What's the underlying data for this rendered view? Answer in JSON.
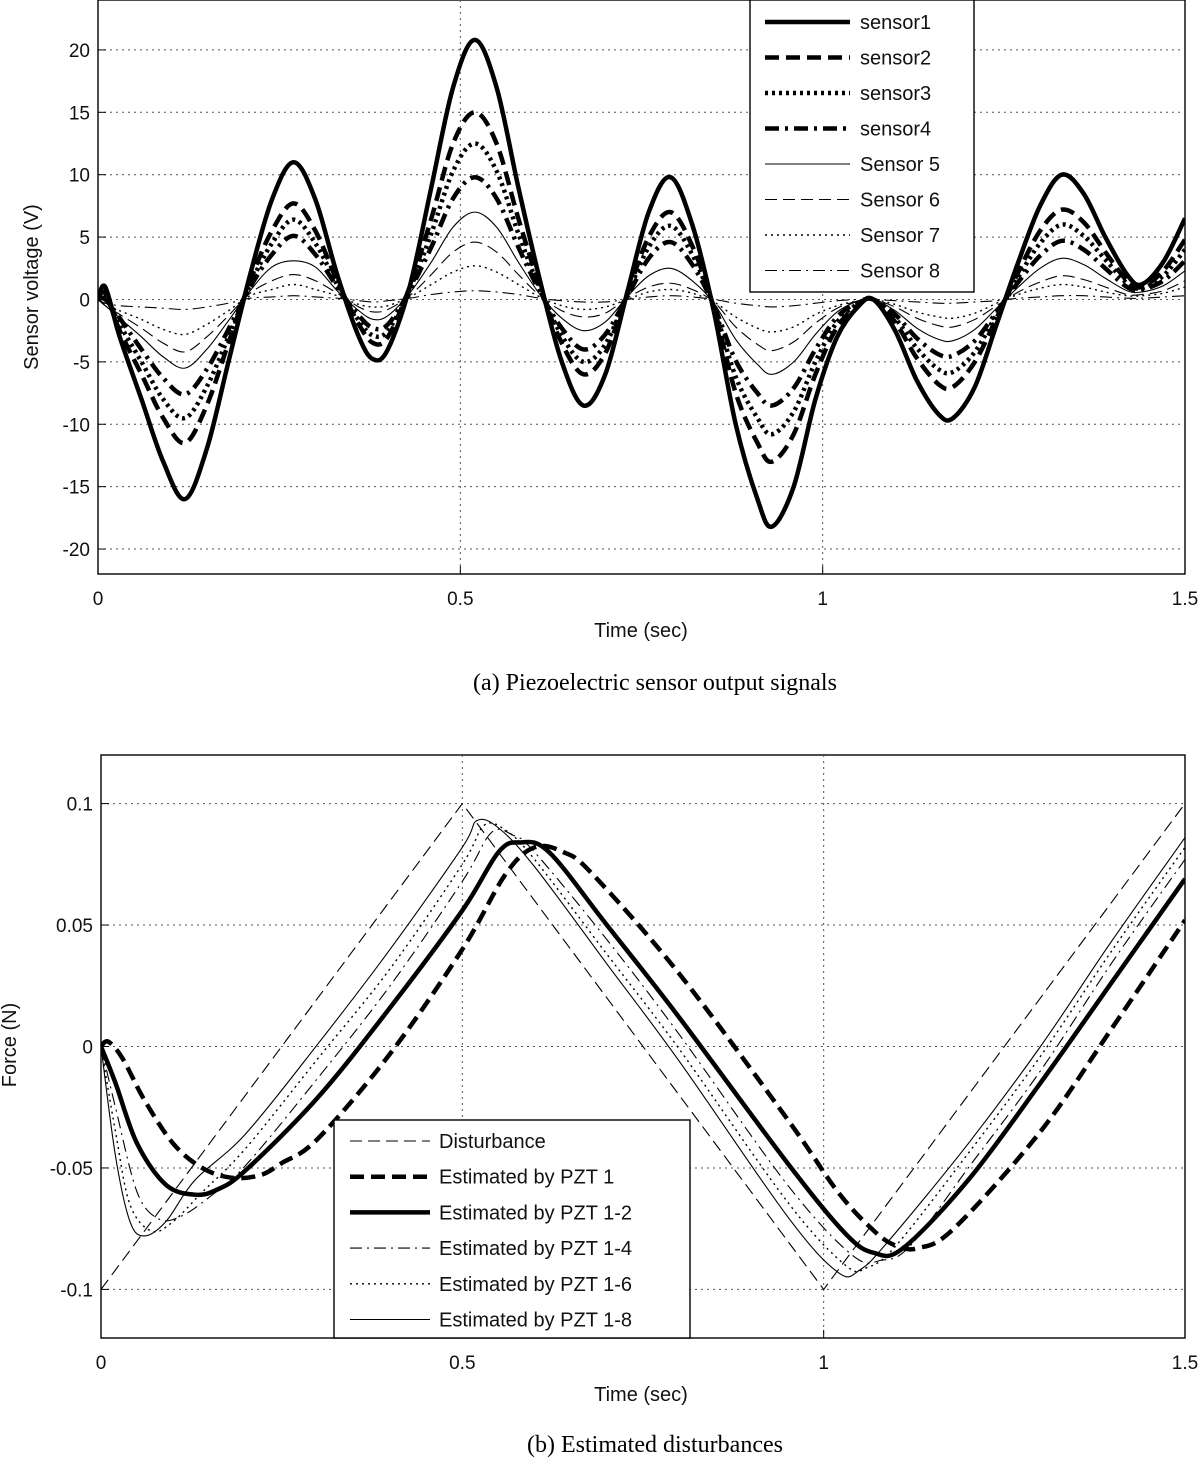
{
  "chart_data": [
    {
      "type": "line",
      "caption": "(a) Piezoelectric sensor output signals",
      "xlabel": "Time (sec)",
      "ylabel": "Sensor voltage (V)",
      "xlim": [
        0,
        1.5
      ],
      "ylim": [
        -22,
        24
      ],
      "xticks": [
        "0",
        "0.5",
        "1",
        "1.5"
      ],
      "xtick_values": [
        0,
        0.5,
        1,
        1.5
      ],
      "yticks": [
        "20",
        "15",
        "10",
        "5",
        "0",
        "-5",
        "-10",
        "-15",
        "-20"
      ],
      "ytick_values": [
        20,
        15,
        10,
        5,
        0,
        -5,
        -10,
        -15,
        -20
      ],
      "grid": true,
      "legend_position": "top-right",
      "x": [
        0,
        0.01,
        0.03,
        0.06,
        0.09,
        0.12,
        0.15,
        0.18,
        0.21,
        0.24,
        0.27,
        0.3,
        0.33,
        0.36,
        0.38,
        0.4,
        0.43,
        0.46,
        0.49,
        0.52,
        0.55,
        0.58,
        0.61,
        0.64,
        0.67,
        0.7,
        0.73,
        0.76,
        0.79,
        0.82,
        0.85,
        0.88,
        0.91,
        0.93,
        0.96,
        0.99,
        1.02,
        1.05,
        1.07,
        1.1,
        1.13,
        1.16,
        1.18,
        1.21,
        1.24,
        1.27,
        1.3,
        1.33,
        1.36,
        1.39,
        1.42,
        1.44,
        1.47,
        1.5
      ],
      "series": [
        {
          "name": "sensor1",
          "style": "solid-bold",
          "values": [
            0,
            1,
            -3,
            -8,
            -13,
            -16,
            -12,
            -5,
            2,
            8,
            11,
            8,
            2,
            -3,
            -4.8,
            -4,
            1,
            9,
            17,
            20.8,
            17,
            9,
            1.5,
            -5,
            -8.5,
            -6,
            0.5,
            7,
            9.8,
            6,
            -1,
            -10,
            -16,
            -18.2,
            -15,
            -8,
            -3,
            -0.5,
            0,
            -2.5,
            -6.5,
            -9.2,
            -9.5,
            -7,
            -2,
            3,
            7.5,
            10,
            8.5,
            5,
            2,
            1.2,
            3,
            6.5
          ]
        },
        {
          "name": "sensor2",
          "style": "dashed-bold",
          "values": [
            0,
            0.5,
            -2.5,
            -6,
            -9.5,
            -11.5,
            -8.5,
            -3.5,
            1.5,
            5.5,
            7.7,
            5.5,
            1.5,
            -2,
            -3.5,
            -3,
            1,
            6.5,
            12.5,
            15,
            12.5,
            6.5,
            1,
            -3.5,
            -6,
            -4.3,
            0.4,
            5,
            7,
            4.3,
            -0.7,
            -7.5,
            -11.5,
            -13,
            -10.8,
            -6,
            -2.2,
            -0.4,
            0,
            -1.8,
            -4.7,
            -6.8,
            -7,
            -5,
            -1.5,
            2.2,
            5.5,
            7.2,
            6.2,
            3.8,
            1.5,
            1,
            2.3,
            4.8
          ]
        },
        {
          "name": "sensor3",
          "style": "dotted-bold",
          "values": [
            0,
            0.2,
            -2,
            -5,
            -8,
            -9.5,
            -7,
            -3,
            1.2,
            4.5,
            6.4,
            4.5,
            1.2,
            -1.7,
            -2.9,
            -2.5,
            0.8,
            5.3,
            10.3,
            12.5,
            10.3,
            5.3,
            0.8,
            -2.9,
            -5,
            -3.6,
            0.3,
            4.2,
            5.9,
            3.6,
            -0.6,
            -6.2,
            -9.5,
            -10.8,
            -9,
            -5,
            -1.8,
            -0.3,
            0,
            -1.5,
            -3.9,
            -5.6,
            -5.8,
            -4.2,
            -1.2,
            1.8,
            4.5,
            6,
            5.1,
            3.2,
            1.3,
            0.9,
            1.9,
            4
          ]
        },
        {
          "name": "sensor4",
          "style": "dashdot-bold",
          "values": [
            0,
            0,
            -1.5,
            -4,
            -6.3,
            -7.6,
            -5.6,
            -2.4,
            1,
            3.6,
            5.1,
            3.6,
            1,
            -1.3,
            -2.3,
            -2,
            0.7,
            4.2,
            8.1,
            9.8,
            8.1,
            4.2,
            0.6,
            -2.3,
            -4,
            -2.8,
            0.2,
            3.3,
            4.6,
            2.8,
            -0.5,
            -4.9,
            -7.5,
            -8.5,
            -7.1,
            -4,
            -1.4,
            -0.2,
            0,
            -1.2,
            -3.1,
            -4.4,
            -4.5,
            -3.3,
            -1,
            1.4,
            3.5,
            4.7,
            4,
            2.5,
            1,
            0.8,
            1.5,
            3.1
          ]
        },
        {
          "name": "Sensor 5",
          "style": "solid-thin",
          "values": [
            0,
            -0.5,
            -1.5,
            -3,
            -4.6,
            -5.5,
            -4,
            -1.7,
            0.7,
            2.6,
            3.1,
            2.6,
            0.7,
            -0.9,
            -1.6,
            -1.3,
            0.5,
            3,
            5.8,
            7,
            5.8,
            3,
            0.4,
            -1.5,
            -2.5,
            -1.8,
            0.2,
            1.9,
            2.5,
            1.5,
            -0.3,
            -3.2,
            -5.2,
            -6,
            -5,
            -2.8,
            -1,
            -0.1,
            0,
            -0.9,
            -2.3,
            -3.2,
            -3.3,
            -2.4,
            -0.7,
            1,
            2.5,
            3.3,
            2.8,
            1.7,
            0.7,
            0.6,
            1.1,
            2.3
          ]
        },
        {
          "name": "Sensor 6",
          "style": "dashed-thin",
          "values": [
            0,
            -0.5,
            -1.2,
            -2.3,
            -3.5,
            -4.2,
            -3,
            -1.3,
            0.5,
            1.5,
            2,
            1.5,
            0.5,
            -0.6,
            -1,
            -0.8,
            0.3,
            2,
            3.8,
            4.6,
            3.8,
            2,
            0.3,
            -0.9,
            -1.4,
            -1.1,
            0.1,
            1,
            1.3,
            0.8,
            -0.2,
            -2.2,
            -3.6,
            -4.1,
            -3.4,
            -1.9,
            -0.7,
            -0.1,
            0,
            -0.6,
            -1.5,
            -2.1,
            -2.2,
            -1.6,
            -0.5,
            0.6,
            1.4,
            1.9,
            1.6,
            1,
            0.4,
            0.4,
            0.7,
            1.5
          ]
        },
        {
          "name": "Sensor 7",
          "style": "dotted-thin",
          "values": [
            0,
            -0.4,
            -0.9,
            -1.6,
            -2.4,
            -2.8,
            -2,
            -0.9,
            0.3,
            0.8,
            1.2,
            0.8,
            0.3,
            -0.4,
            -0.6,
            -0.5,
            0.2,
            1.2,
            2.2,
            2.7,
            2.2,
            1.2,
            0.2,
            -0.5,
            -0.8,
            -0.6,
            0,
            0.6,
            0.8,
            0.5,
            -0.2,
            -1.4,
            -2.3,
            -2.6,
            -2.2,
            -1.2,
            -0.5,
            -0.1,
            0,
            -0.4,
            -1,
            -1.4,
            -1.5,
            -1.1,
            -0.3,
            0.4,
            0.9,
            1.2,
            1,
            0.6,
            0.3,
            0.3,
            0.5,
            1
          ]
        },
        {
          "name": "Sensor 8",
          "style": "dashdot-thin",
          "values": [
            0,
            -0.3,
            -0.5,
            -0.6,
            -0.7,
            -0.8,
            -0.6,
            -0.3,
            0.1,
            0.2,
            0.3,
            0.2,
            0.1,
            -0.1,
            -0.2,
            -0.1,
            0.1,
            0.4,
            0.6,
            0.7,
            0.6,
            0.4,
            0.1,
            -0.1,
            -0.2,
            -0.2,
            0,
            0.2,
            0.3,
            0.2,
            0,
            -0.3,
            -0.5,
            -0.6,
            -0.5,
            -0.3,
            -0.1,
            0,
            0,
            -0.1,
            -0.2,
            -0.3,
            -0.3,
            -0.2,
            -0.1,
            0.1,
            0.2,
            0.3,
            0.3,
            0.2,
            0.1,
            0.1,
            0.2,
            0.3
          ]
        }
      ]
    },
    {
      "type": "line",
      "caption": "(b) Estimated disturbances",
      "xlabel": "Time (sec)",
      "ylabel": "Force (N)",
      "xlim": [
        0,
        1.5
      ],
      "ylim": [
        -0.12,
        0.12
      ],
      "xticks": [
        "0",
        "0.5",
        "1",
        "1.5"
      ],
      "xtick_values": [
        0,
        0.5,
        1,
        1.5
      ],
      "yticks": [
        "0.1",
        "0.05",
        "0",
        "-0.05",
        "-0.1"
      ],
      "ytick_values": [
        0.1,
        0.05,
        0,
        -0.05,
        -0.1
      ],
      "grid": true,
      "legend_position": "bottom-center",
      "series": [
        {
          "name": "Disturbance",
          "style": "dashed-thin",
          "x": [
            0,
            0.5,
            1.0,
            1.5
          ],
          "values": [
            -0.1,
            0.1,
            -0.1,
            0.1
          ]
        },
        {
          "name": "Estimated by PZT 1",
          "style": "dashed-bold",
          "x": [
            0,
            0.01,
            0.03,
            0.06,
            0.1,
            0.14,
            0.18,
            0.22,
            0.25,
            0.3,
            0.4,
            0.5,
            0.56,
            0.6,
            0.64,
            0.68,
            0.8,
            0.95,
            1.02,
            1.07,
            1.1,
            1.13,
            1.18,
            1.3,
            1.4,
            1.5
          ],
          "values": [
            0,
            0.002,
            -0.005,
            -0.022,
            -0.04,
            -0.05,
            -0.054,
            -0.053,
            -0.048,
            -0.038,
            -0.003,
            0.04,
            0.071,
            0.082,
            0.08,
            0.071,
            0.03,
            -0.03,
            -0.06,
            -0.076,
            -0.082,
            -0.083,
            -0.075,
            -0.035,
            0.008,
            0.052
          ]
        },
        {
          "name": "Estimated by PZT 1-2",
          "style": "solid-bold",
          "x": [
            0,
            0.02,
            0.05,
            0.09,
            0.13,
            0.16,
            0.2,
            0.3,
            0.4,
            0.5,
            0.55,
            0.58,
            0.62,
            0.7,
            0.8,
            0.95,
            1.03,
            1.07,
            1.11,
            1.2,
            1.3,
            1.4,
            1.5
          ],
          "values": [
            0,
            -0.015,
            -0.04,
            -0.057,
            -0.061,
            -0.059,
            -0.051,
            -0.021,
            0.016,
            0.056,
            0.08,
            0.084,
            0.08,
            0.05,
            0.012,
            -0.048,
            -0.077,
            -0.085,
            -0.083,
            -0.055,
            -0.015,
            0.027,
            0.069
          ]
        },
        {
          "name": "Estimated by PZT 1-4",
          "style": "dashdot-thin",
          "x": [
            0,
            0.02,
            0.05,
            0.08,
            0.11,
            0.15,
            0.2,
            0.3,
            0.4,
            0.5,
            0.54,
            0.57,
            0.6,
            0.7,
            0.8,
            0.95,
            1.04,
            1.08,
            1.12,
            1.2,
            1.3,
            1.4,
            1.5
          ],
          "values": [
            0,
            -0.025,
            -0.06,
            -0.071,
            -0.07,
            -0.062,
            -0.049,
            -0.013,
            0.025,
            0.068,
            0.088,
            0.087,
            0.08,
            0.044,
            0.005,
            -0.057,
            -0.086,
            -0.088,
            -0.082,
            -0.05,
            -0.01,
            0.035,
            0.077
          ]
        },
        {
          "name": "Estimated by PZT 1-6",
          "style": "dotted-thin",
          "x": [
            0,
            0.02,
            0.04,
            0.07,
            0.1,
            0.14,
            0.2,
            0.3,
            0.4,
            0.5,
            0.53,
            0.56,
            0.6,
            0.7,
            0.8,
            0.95,
            1.03,
            1.06,
            1.1,
            1.2,
            1.3,
            1.4,
            1.5
          ],
          "values": [
            0,
            -0.035,
            -0.065,
            -0.076,
            -0.072,
            -0.06,
            -0.042,
            -0.005,
            0.032,
            0.075,
            0.091,
            0.089,
            0.077,
            0.038,
            -0.001,
            -0.064,
            -0.09,
            -0.091,
            -0.082,
            -0.044,
            -0.004,
            0.04,
            0.082
          ]
        },
        {
          "name": "Estimated by PZT 1-8",
          "style": "solid-thin",
          "x": [
            0,
            0.02,
            0.04,
            0.06,
            0.09,
            0.13,
            0.2,
            0.3,
            0.4,
            0.5,
            0.52,
            0.55,
            0.6,
            0.7,
            0.8,
            0.95,
            1.02,
            1.05,
            1.09,
            1.2,
            1.3,
            1.4,
            1.5
          ],
          "values": [
            0,
            -0.045,
            -0.072,
            -0.078,
            -0.072,
            -0.055,
            -0.036,
            0.001,
            0.04,
            0.082,
            0.093,
            0.09,
            0.074,
            0.034,
            -0.006,
            -0.07,
            -0.093,
            -0.092,
            -0.08,
            -0.04,
            0.0,
            0.044,
            0.086
          ]
        }
      ]
    }
  ]
}
